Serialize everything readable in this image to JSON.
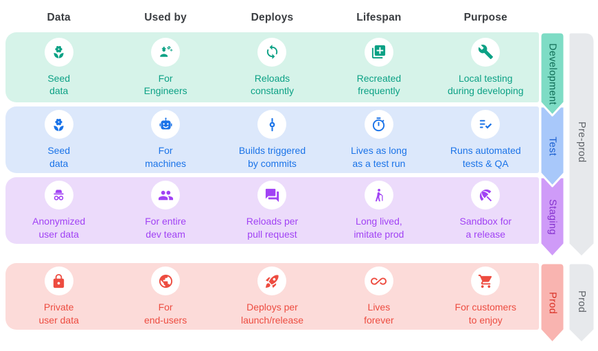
{
  "header": {
    "columns": [
      "Data",
      "Used by",
      "Deploys",
      "Lifespan",
      "Purpose"
    ],
    "text_color": "#3a3d41"
  },
  "rows": [
    {
      "id": "development",
      "ribbon_label": "Development",
      "colors": {
        "bg": "#d6f3e9",
        "accent": "#0ca185",
        "ribbon": "#7edcc5",
        "ribbon_text": "#0e6b54"
      },
      "cells": [
        {
          "icon": "seed-icon",
          "lines": [
            "Seed",
            "data"
          ]
        },
        {
          "icon": "engineer-icon",
          "lines": [
            "For",
            "Engineers"
          ]
        },
        {
          "icon": "sync-icon",
          "lines": [
            "Reloads",
            "constantly"
          ]
        },
        {
          "icon": "library-add-icon",
          "lines": [
            "Recreated",
            "frequently"
          ]
        },
        {
          "icon": "wrench-icon",
          "lines": [
            "Local testing",
            "during developing"
          ]
        }
      ]
    },
    {
      "id": "test",
      "ribbon_label": "Test",
      "colors": {
        "bg": "#dce8fb",
        "accent": "#1a73e8",
        "ribbon": "#a8c8fa",
        "ribbon_text": "#1a5fd0"
      },
      "cells": [
        {
          "icon": "seed-icon",
          "lines": [
            "Seed",
            "data"
          ]
        },
        {
          "icon": "robot-icon",
          "lines": [
            "For",
            "machines"
          ]
        },
        {
          "icon": "commit-icon",
          "lines": [
            "Builds triggered",
            "by commits"
          ]
        },
        {
          "icon": "timer-icon",
          "lines": [
            "Lives as long",
            "as a test run"
          ]
        },
        {
          "icon": "checklist-icon",
          "lines": [
            "Runs automated",
            "tests & QA"
          ]
        }
      ]
    },
    {
      "id": "staging",
      "ribbon_label": "Staging",
      "colors": {
        "bg": "#ecdbfb",
        "accent": "#a142f4",
        "ribbon": "#cf9bf8",
        "ribbon_text": "#8430ce"
      },
      "cells": [
        {
          "icon": "incognito-icon",
          "lines": [
            "Anonymized",
            "user data"
          ]
        },
        {
          "icon": "team-icon",
          "lines": [
            "For entire",
            "dev team"
          ]
        },
        {
          "icon": "chat-icon",
          "lines": [
            "Reloads per",
            "pull request"
          ]
        },
        {
          "icon": "elderly-icon",
          "lines": [
            "Long lived,",
            "imitate prod"
          ]
        },
        {
          "icon": "umbrella-icon",
          "lines": [
            "Sandbox for",
            "a release"
          ]
        }
      ]
    },
    {
      "id": "prod",
      "ribbon_label": "Prod",
      "colors": {
        "bg": "#fcdbd9",
        "accent": "#ed4c40",
        "ribbon": "#f9b4b0",
        "ribbon_text": "#d93025"
      },
      "cells": [
        {
          "icon": "lock-icon",
          "lines": [
            "Private",
            "user data"
          ]
        },
        {
          "icon": "globe-icon",
          "lines": [
            "For",
            "end-users"
          ]
        },
        {
          "icon": "rocket-icon",
          "lines": [
            "Deploys per",
            "launch/release"
          ]
        },
        {
          "icon": "infinity-icon",
          "lines": [
            "Lives",
            "forever"
          ]
        },
        {
          "icon": "cart-icon",
          "lines": [
            "For customers",
            "to enjoy"
          ]
        }
      ]
    }
  ],
  "side_ribbons": [
    {
      "id": "pre-prod",
      "label": "Pre-prod",
      "color": "#e7e9ec",
      "text_color": "#5f6368"
    },
    {
      "id": "prod",
      "label": "Prod",
      "color": "#e7e9ec",
      "text_color": "#5f6368"
    }
  ]
}
